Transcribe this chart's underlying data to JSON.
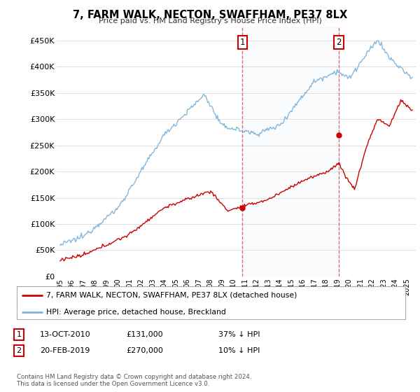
{
  "title": "7, FARM WALK, NECTON, SWAFFHAM, PE37 8LX",
  "subtitle": "Price paid vs. HM Land Registry's House Price Index (HPI)",
  "ylabel_ticks": [
    "£0",
    "£50K",
    "£100K",
    "£150K",
    "£200K",
    "£250K",
    "£300K",
    "£350K",
    "£400K",
    "£450K"
  ],
  "ytick_values": [
    0,
    50000,
    100000,
    150000,
    200000,
    250000,
    300000,
    350000,
    400000,
    450000
  ],
  "ylim": [
    0,
    475000
  ],
  "xlim_start": 1994.7,
  "xlim_end": 2025.8,
  "hpi_color": "#7fb3d8",
  "price_color": "#cc0000",
  "sale1_year": 2010.79,
  "sale1_price": 131000,
  "sale1_label": "1",
  "sale2_year": 2019.13,
  "sale2_price": 270000,
  "sale2_label": "2",
  "legend_line1": "7, FARM WALK, NECTON, SWAFFHAM, PE37 8LX (detached house)",
  "legend_line2": "HPI: Average price, detached house, Breckland",
  "note1_num": "1",
  "note1_date": "13-OCT-2010",
  "note1_price": "£131,000",
  "note1_pct": "37% ↓ HPI",
  "note2_num": "2",
  "note2_date": "20-FEB-2019",
  "note2_price": "£270,000",
  "note2_pct": "10% ↓ HPI",
  "footnote": "Contains HM Land Registry data © Crown copyright and database right 2024.\nThis data is licensed under the Open Government Licence v3.0.",
  "background_color": "#ffffff",
  "grid_color": "#e0e0e0"
}
